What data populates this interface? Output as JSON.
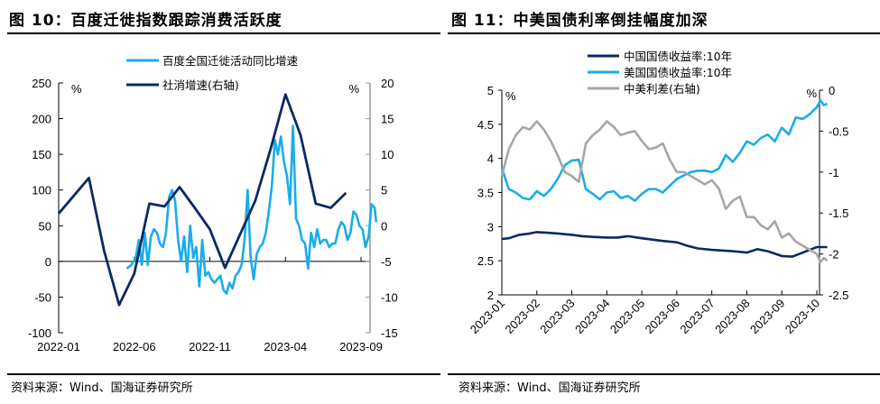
{
  "figures": [
    {
      "title": "图 10：百度迁徙指数跟踪消费活跃度",
      "source": "资料来源：Wind、国海证券研究所"
    },
    {
      "title": "图 11：中美国债利率倒挂幅度加深",
      "source": "资料来源：Wind、国海证券研究所"
    }
  ],
  "chart_data": [
    {
      "type": "line",
      "title": "图 10：百度迁徙指数跟踪消费活跃度",
      "ylabel": "%",
      "y2label": "%",
      "ylim": [
        -100,
        250
      ],
      "y2lim": [
        -15,
        20
      ],
      "yticks": [
        "250",
        "200",
        "150",
        "100",
        "50",
        "0",
        "-50",
        "-100"
      ],
      "y2ticks": [
        "20",
        "15",
        "10",
        "5",
        "0",
        "-5",
        "-10",
        "-15"
      ],
      "xticks": [
        "2022-01",
        "2022-06",
        "2022-11",
        "2023-04",
        "2023-09"
      ],
      "x_range_months": [
        0,
        21
      ],
      "legend_position": "top-center",
      "series": [
        {
          "name": "百度全国迁徙活动同比增速",
          "axis": "left",
          "color": "#1AADE8",
          "x_months": [
            4.5,
            4.8,
            5.1,
            5.3,
            5.5,
            5.7,
            5.9,
            6.1,
            6.3,
            6.5,
            6.7,
            6.9,
            7.1,
            7.3,
            7.5,
            7.7,
            7.9,
            8.1,
            8.3,
            8.5,
            8.7,
            8.9,
            9.1,
            9.3,
            9.5,
            9.7,
            9.9,
            10.1,
            10.3,
            10.5,
            10.7,
            10.9,
            11.1,
            11.3,
            11.5,
            11.7,
            11.9,
            12.1,
            12.3,
            12.5,
            12.7,
            12.9,
            13.1,
            13.3,
            13.5,
            13.7,
            13.9,
            14.1,
            14.3,
            14.5,
            14.7,
            14.9,
            15.1,
            15.3,
            15.5,
            15.7,
            15.9,
            16.1,
            16.3,
            16.5,
            16.7,
            16.9,
            17.1,
            17.3,
            17.5,
            17.7,
            17.9,
            18.1,
            18.3,
            18.5,
            18.7,
            18.9,
            19.1,
            19.3,
            19.5,
            19.7,
            19.9,
            20.1,
            20.3,
            20.5,
            20.7,
            20.9,
            21.0
          ],
          "values": [
            -10,
            -5,
            5,
            30,
            -5,
            40,
            -5,
            35,
            45,
            40,
            25,
            20,
            40,
            90,
            100,
            85,
            30,
            0,
            35,
            -15,
            50,
            5,
            20,
            -35,
            30,
            -20,
            -15,
            -25,
            -30,
            -25,
            -20,
            -40,
            -45,
            -30,
            -38,
            -20,
            -15,
            -5,
            30,
            100,
            5,
            -25,
            10,
            20,
            25,
            40,
            70,
            105,
            170,
            150,
            175,
            140,
            120,
            80,
            190,
            60,
            50,
            30,
            25,
            -10,
            40,
            20,
            45,
            25,
            30,
            30,
            20,
            25,
            25,
            45,
            55,
            50,
            30,
            40,
            70,
            65,
            50,
            45,
            20,
            35,
            80,
            75,
            55
          ]
        },
        {
          "name": "社消增速(右轴)",
          "axis": "right",
          "color": "#0B2A62",
          "x_months": [
            0,
            2,
            3,
            4,
            5,
            6,
            7,
            8,
            9,
            10,
            11,
            13,
            14,
            15,
            16,
            17,
            18,
            19
          ],
          "values": [
            1.7,
            6.7,
            -3.5,
            -11.1,
            -6.7,
            3.1,
            2.7,
            5.4,
            2.5,
            -0.5,
            -5.9,
            3.5,
            10.6,
            18.4,
            12.7,
            3.1,
            2.5,
            4.6
          ]
        }
      ]
    },
    {
      "type": "line",
      "title": "图 11：中美国债利率倒挂幅度加深",
      "ylabel": "%",
      "y2label": "%",
      "ylim": [
        2,
        5
      ],
      "y2lim": [
        -2.5,
        0
      ],
      "yticks": [
        "5",
        "4.5",
        "4",
        "3.5",
        "3",
        "2.5",
        "2"
      ],
      "y2ticks": [
        "0",
        "-0.5",
        "-1",
        "-1.5",
        "-2",
        "-2.5"
      ],
      "xticks": [
        "2023-01",
        "2023-02",
        "2023-03",
        "2023-04",
        "2023-05",
        "2023-06",
        "2023-07",
        "2023-08",
        "2023-09",
        "2023-10"
      ],
      "x_range_months": [
        0,
        9.3
      ],
      "legend_position": "top-center",
      "series": [
        {
          "name": "中国国债收益率:10年",
          "axis": "left",
          "color": "#0B2A62",
          "x_months": [
            0,
            0.2,
            0.5,
            0.8,
            1.0,
            1.3,
            1.6,
            2.0,
            2.3,
            2.6,
            3.0,
            3.3,
            3.6,
            4.0,
            4.3,
            4.6,
            5.0,
            5.3,
            5.6,
            6.0,
            6.3,
            6.6,
            7.0,
            7.3,
            7.6,
            8.0,
            8.3,
            8.6,
            9.0,
            9.3
          ],
          "values": [
            2.82,
            2.83,
            2.88,
            2.9,
            2.92,
            2.91,
            2.9,
            2.88,
            2.86,
            2.85,
            2.84,
            2.84,
            2.86,
            2.83,
            2.81,
            2.79,
            2.77,
            2.72,
            2.68,
            2.66,
            2.65,
            2.64,
            2.62,
            2.67,
            2.64,
            2.57,
            2.56,
            2.62,
            2.7,
            2.7
          ]
        },
        {
          "name": "美国国债收益率:10年",
          "axis": "left",
          "color": "#1AADE8",
          "x_months": [
            0,
            0.1,
            0.2,
            0.4,
            0.6,
            0.8,
            1.0,
            1.2,
            1.4,
            1.6,
            1.8,
            2.0,
            2.2,
            2.4,
            2.6,
            2.8,
            3.0,
            3.2,
            3.4,
            3.6,
            3.8,
            4.0,
            4.2,
            4.4,
            4.6,
            4.8,
            5.0,
            5.2,
            5.4,
            5.6,
            5.8,
            6.0,
            6.2,
            6.4,
            6.6,
            6.8,
            7.0,
            7.2,
            7.4,
            7.6,
            7.8,
            8.0,
            8.2,
            8.4,
            8.6,
            8.8,
            9.0,
            9.1,
            9.2,
            9.3
          ],
          "values": [
            3.87,
            3.7,
            3.55,
            3.5,
            3.42,
            3.4,
            3.52,
            3.45,
            3.55,
            3.7,
            3.9,
            3.97,
            3.98,
            3.55,
            3.48,
            3.4,
            3.5,
            3.52,
            3.42,
            3.45,
            3.38,
            3.48,
            3.55,
            3.55,
            3.5,
            3.6,
            3.7,
            3.75,
            3.8,
            3.82,
            3.82,
            3.8,
            3.85,
            4.05,
            3.95,
            4.08,
            4.25,
            4.2,
            4.3,
            4.35,
            4.25,
            4.45,
            4.35,
            4.6,
            4.58,
            4.65,
            4.75,
            4.85,
            4.78,
            4.8
          ]
        },
        {
          "name": "中美利差(右轴)",
          "axis": "right",
          "color": "#A6A6A6",
          "x_months": [
            0,
            0.1,
            0.2,
            0.4,
            0.6,
            0.8,
            1.0,
            1.2,
            1.4,
            1.6,
            1.8,
            2.0,
            2.2,
            2.4,
            2.6,
            2.8,
            3.0,
            3.2,
            3.4,
            3.6,
            3.8,
            4.0,
            4.2,
            4.4,
            4.6,
            4.8,
            5.0,
            5.2,
            5.4,
            5.6,
            5.8,
            6.0,
            6.2,
            6.4,
            6.6,
            6.8,
            7.0,
            7.2,
            7.4,
            7.6,
            7.8,
            8.0,
            8.2,
            8.4,
            8.6,
            8.8,
            9.0,
            9.1,
            9.2,
            9.3
          ],
          "values": [
            -1.05,
            -0.88,
            -0.72,
            -0.55,
            -0.45,
            -0.48,
            -0.38,
            -0.48,
            -0.62,
            -0.8,
            -1.0,
            -1.05,
            -1.12,
            -0.65,
            -0.55,
            -0.48,
            -0.38,
            -0.45,
            -0.55,
            -0.52,
            -0.5,
            -0.62,
            -0.72,
            -0.7,
            -0.65,
            -0.85,
            -1.0,
            -1.0,
            -1.05,
            -1.1,
            -1.15,
            -1.1,
            -1.2,
            -1.45,
            -1.35,
            -1.3,
            -1.55,
            -1.55,
            -1.65,
            -1.7,
            -1.6,
            -1.8,
            -1.75,
            -1.85,
            -1.9,
            -1.95,
            -2.0,
            -2.1,
            -2.05,
            -2.08
          ]
        }
      ]
    }
  ]
}
